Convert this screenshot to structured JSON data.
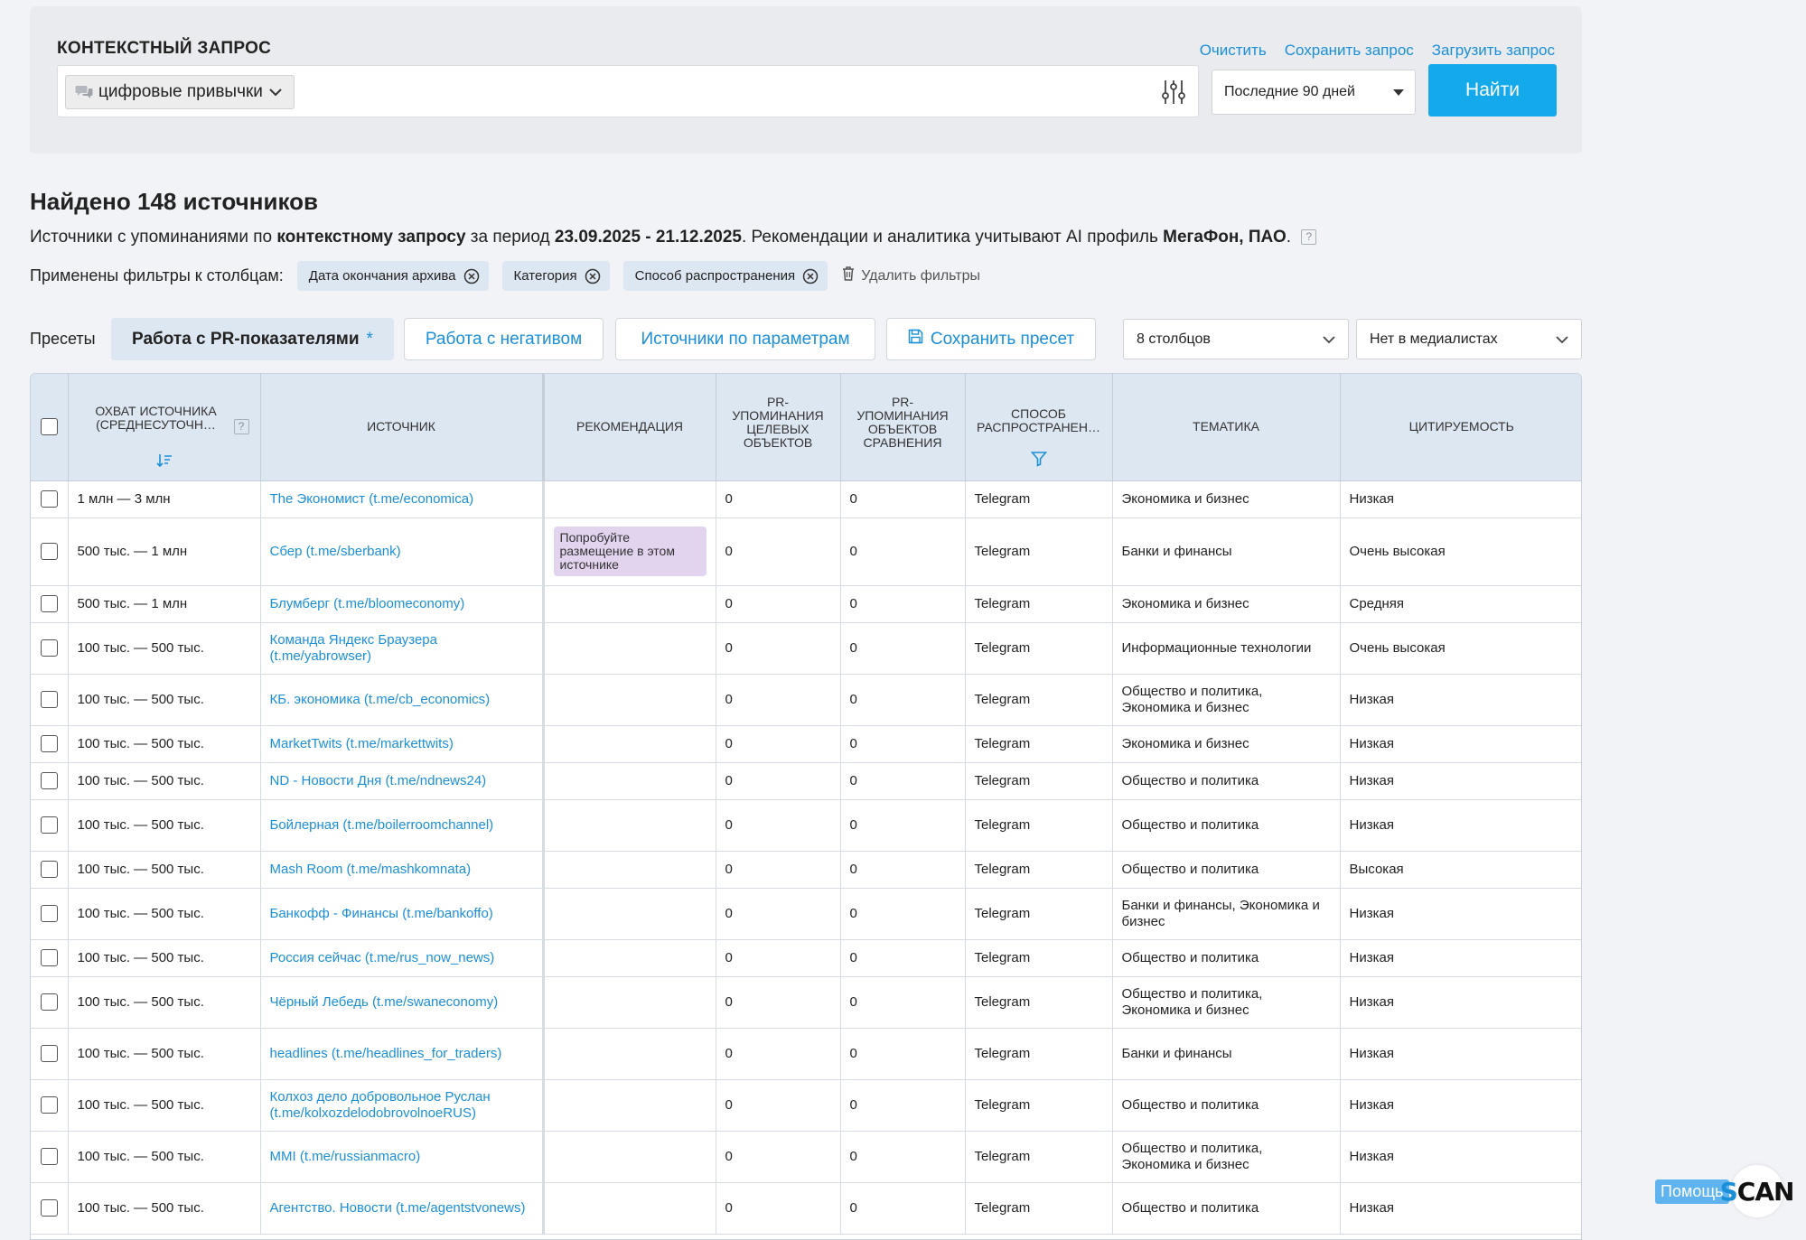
{
  "query": {
    "title": "КОНТЕКСТНЫЙ ЗАПРОС",
    "actions": [
      "Очистить",
      "Сохранить запрос",
      "Загрузить запрос"
    ],
    "chip_label": "цифровые привычки",
    "period": "Последние 90 дней",
    "find_label": "Найти"
  },
  "results": {
    "title": "Найдено 148 источников",
    "desc_1": "Источники с упоминаниями по ",
    "desc_2": "контекстному запросу",
    "desc_3": " за период ",
    "desc_4": "23.09.2025 - 21.12.2025",
    "desc_5": ". Рекомендации и аналитика учитывают AI профиль ",
    "desc_6": "МегаФон, ПАО",
    "desc_7": ".",
    "help_mark": "?"
  },
  "filters": {
    "label": "Применены фильтры к столбцам:",
    "chips": [
      "Дата окончания архива",
      "Категория",
      "Способ распространения"
    ],
    "delete_label": "Удалить фильтры"
  },
  "presets": {
    "label": "Пресеты",
    "active": "Работа с PR-показателями",
    "active_mark": "*",
    "items": [
      "Работа с негативом",
      "Источники по параметрам"
    ],
    "save_label": "Сохранить пресет",
    "columns_select": "8 столбцов",
    "medialist_select": "Нет в медиалистах"
  },
  "table": {
    "headers": {
      "reach": "Охват источника (среднесуточн…",
      "source": "Источник",
      "recommendation": "Рекомендация",
      "pr_target": "PR-упоминания целевых объектов",
      "pr_compare": "PR-упоминания объектов сравнения",
      "distribution": "Способ распространен…",
      "topic": "Тематика",
      "citation": "Цитируемость"
    },
    "help_mark": "?",
    "rows": [
      {
        "reach": "1 млн — 3 млн",
        "source": "The Экономист (t.me/economica)",
        "rec": "",
        "pr_t": "0",
        "pr_c": "0",
        "dist": "Telegram",
        "topic": "Экономика и бизнес",
        "cite": "Низкая"
      },
      {
        "reach": "500 тыс. — 1 млн",
        "source": "Сбер (t.me/sberbank)",
        "rec": "Попробуйте размещение в этом источнике",
        "pr_t": "0",
        "pr_c": "0",
        "dist": "Telegram",
        "topic": "Банки и финансы",
        "cite": "Очень высокая"
      },
      {
        "reach": "500 тыс. — 1 млн",
        "source": "Блумберг (t.me/bloomeconomy)",
        "rec": "",
        "pr_t": "0",
        "pr_c": "0",
        "dist": "Telegram",
        "topic": "Экономика и бизнес",
        "cite": "Средняя"
      },
      {
        "reach": "100 тыс. — 500 тыс.",
        "source": "Команда Яндекс Браузера (t.me/yabrowser)",
        "rec": "",
        "pr_t": "0",
        "pr_c": "0",
        "dist": "Telegram",
        "topic": "Информационные технологии",
        "cite": "Очень высокая"
      },
      {
        "reach": "100 тыс. — 500 тыс.",
        "source": "КБ. экономика (t.me/cb_economics)",
        "rec": "",
        "pr_t": "0",
        "pr_c": "0",
        "dist": "Telegram",
        "topic": "Общество и политика, Экономика и бизнес",
        "cite": "Низкая"
      },
      {
        "reach": "100 тыс. — 500 тыс.",
        "source": "MarketTwits (t.me/markettwits)",
        "rec": "",
        "pr_t": "0",
        "pr_c": "0",
        "dist": "Telegram",
        "topic": "Экономика и бизнес",
        "cite": "Низкая"
      },
      {
        "reach": "100 тыс. — 500 тыс.",
        "source": "ND - Новости Дня (t.me/ndnews24)",
        "rec": "",
        "pr_t": "0",
        "pr_c": "0",
        "dist": "Telegram",
        "topic": "Общество и политика",
        "cite": "Низкая"
      },
      {
        "reach": "100 тыс. — 500 тыс.",
        "source": "Бойлерная (t.me/boilerroomchannel)",
        "rec": "",
        "pr_t": "0",
        "pr_c": "0",
        "dist": "Telegram",
        "topic": "Общество и политика",
        "cite": "Низкая"
      },
      {
        "reach": "100 тыс. — 500 тыс.",
        "source": "Mash Room (t.me/mashkomnata)",
        "rec": "",
        "pr_t": "0",
        "pr_c": "0",
        "dist": "Telegram",
        "topic": "Общество и политика",
        "cite": "Высокая"
      },
      {
        "reach": "100 тыс. — 500 тыс.",
        "source": "Банкофф - Финансы (t.me/bankoffo)",
        "rec": "",
        "pr_t": "0",
        "pr_c": "0",
        "dist": "Telegram",
        "topic": "Банки и финансы, Экономика и бизнес",
        "cite": "Низкая"
      },
      {
        "reach": "100 тыс. — 500 тыс.",
        "source": "Россия сейчас (t.me/rus_now_news)",
        "rec": "",
        "pr_t": "0",
        "pr_c": "0",
        "dist": "Telegram",
        "topic": "Общество и политика",
        "cite": "Низкая"
      },
      {
        "reach": "100 тыс. — 500 тыс.",
        "source": "Чёрный Лебедь (t.me/swaneconomy)",
        "rec": "",
        "pr_t": "0",
        "pr_c": "0",
        "dist": "Telegram",
        "topic": "Общество и политика, Экономика и бизнес",
        "cite": "Низкая"
      },
      {
        "reach": "100 тыс. — 500 тыс.",
        "source": "headlines (t.me/headlines_for_traders)",
        "rec": "",
        "pr_t": "0",
        "pr_c": "0",
        "dist": "Telegram",
        "topic": "Банки и финансы",
        "cite": "Низкая"
      },
      {
        "reach": "100 тыс. — 500 тыс.",
        "source": "Колхоз дело добровольное Руслан (t.me/kolxozdelodobrovolnoeRUS)",
        "rec": "",
        "pr_t": "0",
        "pr_c": "0",
        "dist": "Telegram",
        "topic": "Общество и политика",
        "cite": "Низкая"
      },
      {
        "reach": "100 тыс. — 500 тыс.",
        "source": "MMI (t.me/russianmacro)",
        "rec": "",
        "pr_t": "0",
        "pr_c": "0",
        "dist": "Telegram",
        "topic": "Общество и политика, Экономика и бизнес",
        "cite": "Низкая"
      },
      {
        "reach": "100 тыс. — 500 тыс.",
        "source": "Агентство. Новости (t.me/agentstvonews)",
        "rec": "",
        "pr_t": "0",
        "pr_c": "0",
        "dist": "Telegram",
        "topic": "Общество и политика",
        "cite": "Низкая"
      }
    ]
  },
  "widget": {
    "help_label": "Помощь",
    "logo_s": "S",
    "logo_rest": "CAN"
  },
  "colors": {
    "accent": "#13a9ea",
    "link": "#1b8fd8",
    "header_bg": "#dde7f1",
    "recommendation_bg": "#e2d3ef",
    "page_bg": "#f1f3f6"
  },
  "icons": [
    "chat-icon",
    "chevron-down-icon",
    "sliders-icon",
    "close-circle-icon",
    "trash-icon",
    "floppy-icon",
    "sort-icon",
    "filter-icon",
    "help-icon"
  ]
}
